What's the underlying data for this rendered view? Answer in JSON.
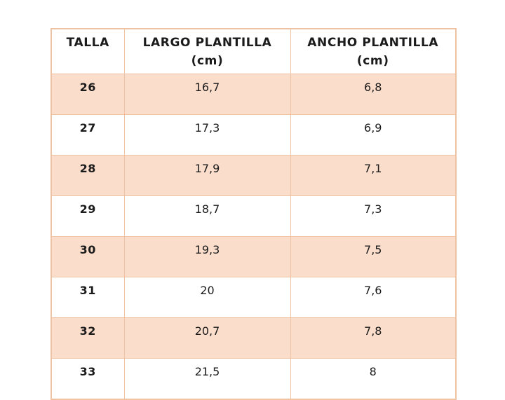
{
  "table": {
    "columns": [
      {
        "key": "talla",
        "label": "TALLA",
        "sub": ""
      },
      {
        "key": "largo",
        "label": "LARGO PLANTILLA",
        "sub": "(cm)"
      },
      {
        "key": "ancho",
        "label": "ANCHO PLANTILLA",
        "sub": "(cm)"
      }
    ],
    "rows": [
      {
        "talla": "26",
        "largo": "16,7",
        "ancho": "6,8"
      },
      {
        "talla": "27",
        "largo": "17,3",
        "ancho": "6,9"
      },
      {
        "talla": "28",
        "largo": "17,9",
        "ancho": "7,1"
      },
      {
        "talla": "29",
        "largo": "18,7",
        "ancho": "7,3"
      },
      {
        "talla": "30",
        "largo": "19,3",
        "ancho": "7,5"
      },
      {
        "talla": "31",
        "largo": "20",
        "ancho": "7,6"
      },
      {
        "talla": "32",
        "largo": "20,7",
        "ancho": "7,8"
      },
      {
        "talla": "33",
        "largo": "21,5",
        "ancho": "8"
      }
    ],
    "colors": {
      "row_shaded": "#fbddcc",
      "row_plain": "#ffffff",
      "border": "#eec3a4",
      "text": "#1b1b1b"
    }
  }
}
